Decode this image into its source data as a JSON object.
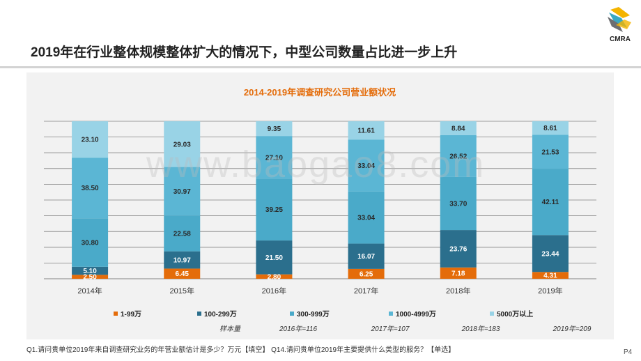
{
  "slide": {
    "title": "2019年在行业整体规模整体扩大的情况下，中型公司数量占比进一步上升",
    "logo_text": "CMRA",
    "footnote": "Q1.请问贵单位2019年来自调查研究业务的年营业额估计是多少？万元【填空】 Q14.请问贵单位2019年主要提供什么类型的服务？【单选】",
    "page_number": "P4",
    "watermark": "www.baogao8.com"
  },
  "chart_data": {
    "type": "bar",
    "stacked": true,
    "title": "2014-2019年调查研究公司营业额状况",
    "categories": [
      "2014年",
      "2015年",
      "2016年",
      "2017年",
      "2018年",
      "2019年"
    ],
    "ylim": [
      0,
      100
    ],
    "grid": true,
    "legend_position": "bottom",
    "series": [
      {
        "name": "1-99万",
        "color": "#e46c0a",
        "values": [
          2.5,
          6.45,
          2.8,
          6.25,
          7.18,
          4.31
        ]
      },
      {
        "name": "100-299万",
        "color": "#2b6f8d",
        "values": [
          5.1,
          10.97,
          21.5,
          16.07,
          23.76,
          23.44
        ]
      },
      {
        "name": "300-999万",
        "color": "#4aaac9",
        "values": [
          30.8,
          22.58,
          39.25,
          33.04,
          33.7,
          42.11
        ]
      },
      {
        "name": "1000-4999万",
        "color": "#5bb6d4",
        "values": [
          38.5,
          30.97,
          27.1,
          33.04,
          26.52,
          21.53
        ]
      },
      {
        "name": "5000万以上",
        "color": "#99d3e6",
        "values": [
          23.1,
          29.03,
          9.35,
          11.61,
          8.84,
          8.61
        ]
      }
    ],
    "sample_label": "样本量",
    "sample_sizes": [
      "2016年=116",
      "2017年=107",
      "2018年=183",
      "2019年=209"
    ]
  }
}
